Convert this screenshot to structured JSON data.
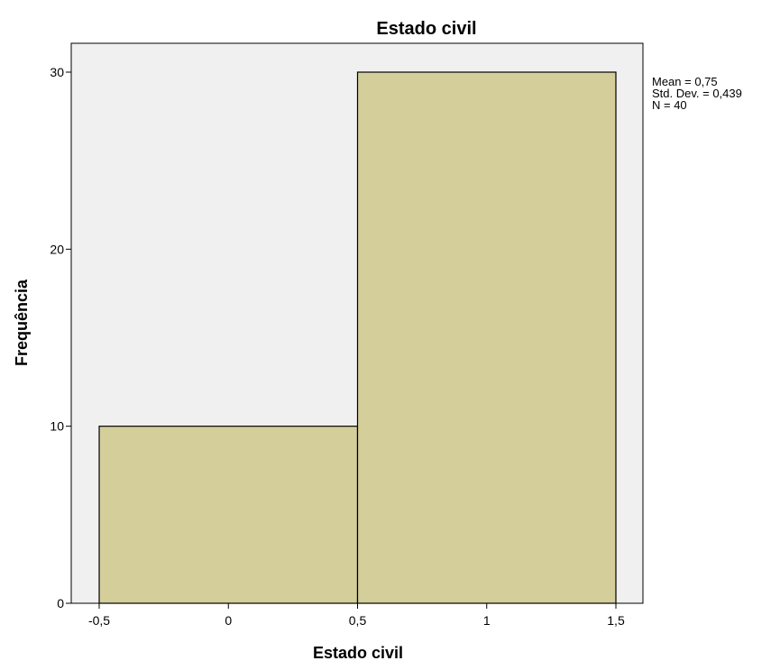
{
  "chart_data": {
    "type": "bar",
    "title": "Estado civil",
    "xlabel": "Estado civil",
    "ylabel": "Frequência",
    "bins": [
      {
        "x0": -0.5,
        "x1": 0.5,
        "value": 10
      },
      {
        "x0": 0.5,
        "x1": 1.5,
        "value": 30
      }
    ],
    "x_ticks": [
      {
        "value": -0.5,
        "label": "-0,5"
      },
      {
        "value": 0,
        "label": "0"
      },
      {
        "value": 0.5,
        "label": "0,5"
      },
      {
        "value": 1,
        "label": "1"
      },
      {
        "value": 1.5,
        "label": "1,5"
      }
    ],
    "y_ticks": [
      {
        "value": 0,
        "label": "0"
      },
      {
        "value": 10,
        "label": "10"
      },
      {
        "value": 20,
        "label": "20"
      },
      {
        "value": 30,
        "label": "30"
      }
    ],
    "stats": [
      "Mean = 0,75",
      "Std. Dev. = 0,439",
      "N = 40"
    ],
    "colors": {
      "bar_fill": "#d3ce9a",
      "plot_background": "#f0f0f0",
      "edge": "#000000"
    },
    "grid": false
  }
}
